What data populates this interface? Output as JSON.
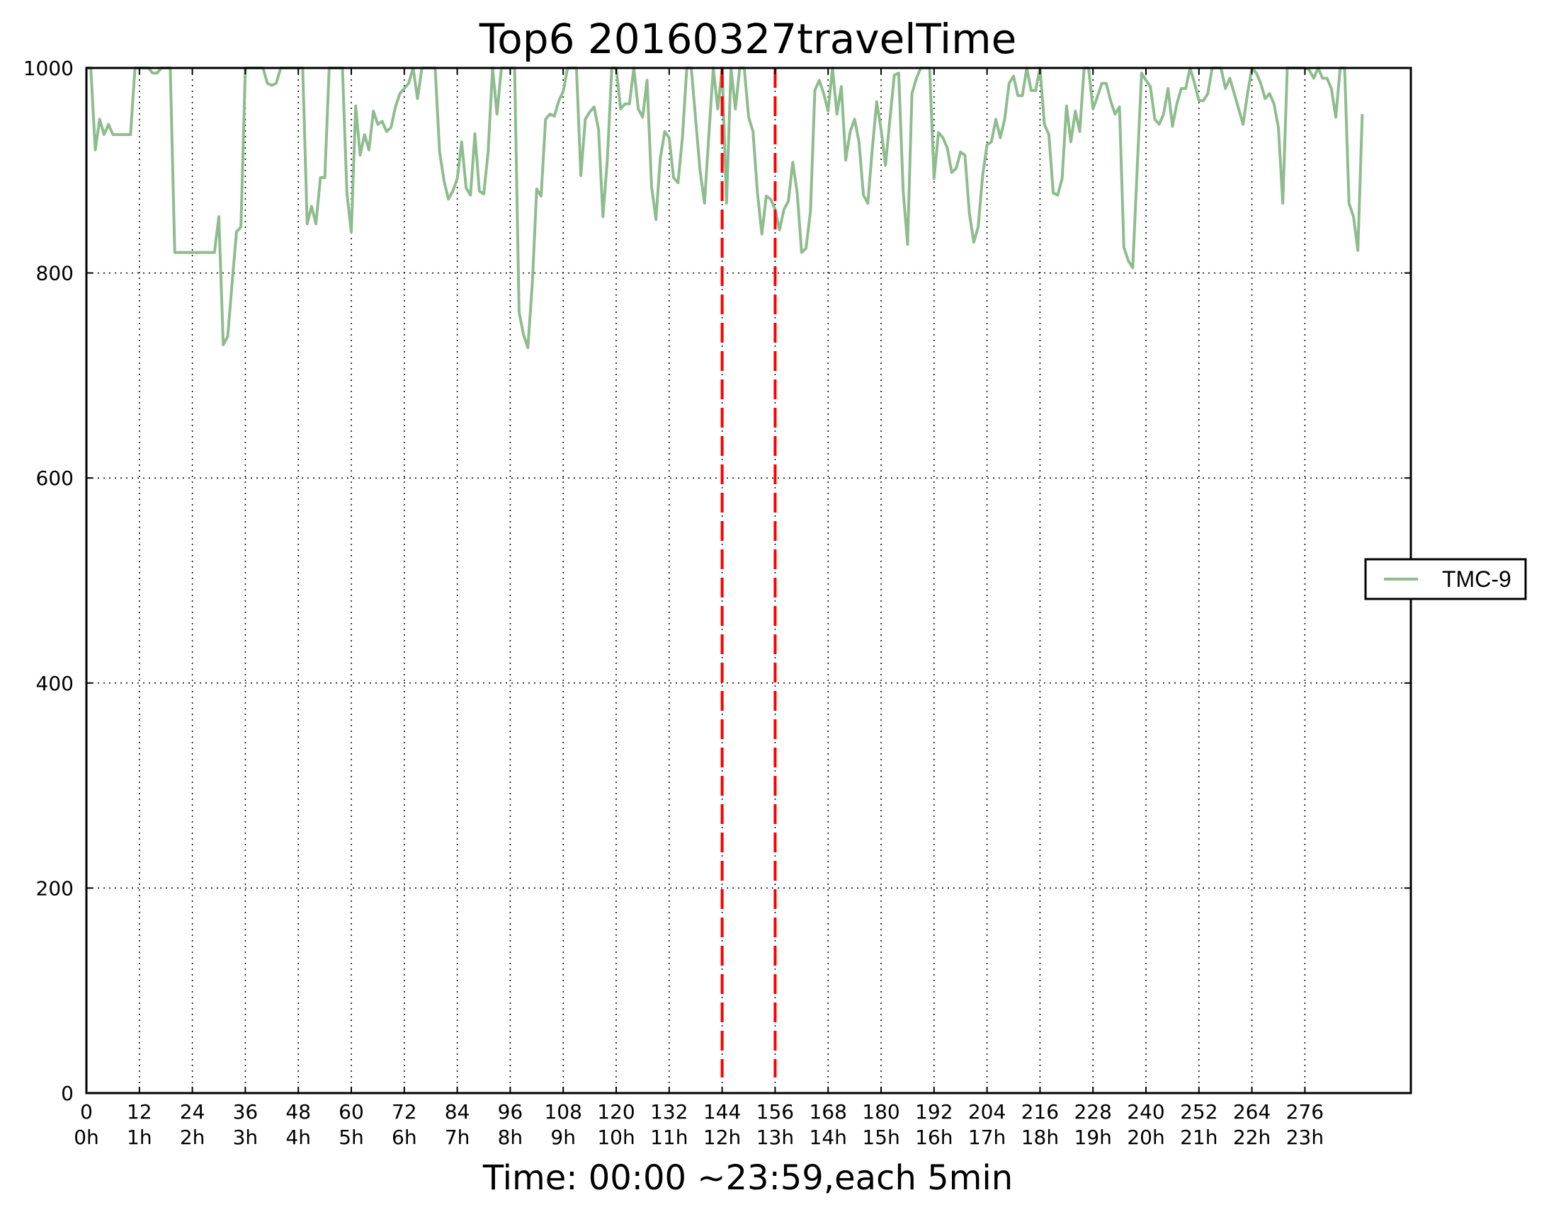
{
  "chart_data": {
    "type": "line",
    "title": "Top6 20160327travelTime",
    "xlabel": "Time: 00:00 ~23:59,each 5min",
    "ylabel": "",
    "xlim": [
      0,
      300
    ],
    "ylim": [
      0,
      1000
    ],
    "x_ticks": [
      {
        "value": 0,
        "label": "0",
        "sublabel": "0h"
      },
      {
        "value": 12,
        "label": "12",
        "sublabel": "1h"
      },
      {
        "value": 24,
        "label": "24",
        "sublabel": "2h"
      },
      {
        "value": 36,
        "label": "36",
        "sublabel": "3h"
      },
      {
        "value": 48,
        "label": "48",
        "sublabel": "4h"
      },
      {
        "value": 60,
        "label": "60",
        "sublabel": "5h"
      },
      {
        "value": 72,
        "label": "72",
        "sublabel": "6h"
      },
      {
        "value": 84,
        "label": "84",
        "sublabel": "7h"
      },
      {
        "value": 96,
        "label": "96",
        "sublabel": "8h"
      },
      {
        "value": 108,
        "label": "108",
        "sublabel": "9h"
      },
      {
        "value": 120,
        "label": "120",
        "sublabel": "10h"
      },
      {
        "value": 132,
        "label": "132",
        "sublabel": "11h"
      },
      {
        "value": 144,
        "label": "144",
        "sublabel": "12h"
      },
      {
        "value": 156,
        "label": "156",
        "sublabel": "13h"
      },
      {
        "value": 168,
        "label": "168",
        "sublabel": "14h"
      },
      {
        "value": 180,
        "label": "180",
        "sublabel": "15h"
      },
      {
        "value": 192,
        "label": "192",
        "sublabel": "16h"
      },
      {
        "value": 204,
        "label": "204",
        "sublabel": "17h"
      },
      {
        "value": 216,
        "label": "216",
        "sublabel": "18h"
      },
      {
        "value": 228,
        "label": "228",
        "sublabel": "19h"
      },
      {
        "value": 240,
        "label": "240",
        "sublabel": "20h"
      },
      {
        "value": 252,
        "label": "252",
        "sublabel": "21h"
      },
      {
        "value": 264,
        "label": "264",
        "sublabel": "22h"
      },
      {
        "value": 276,
        "label": "276",
        "sublabel": "23h"
      }
    ],
    "y_ticks": [
      {
        "value": 0,
        "label": "0"
      },
      {
        "value": 200,
        "label": "200"
      },
      {
        "value": 400,
        "label": "400"
      },
      {
        "value": 600,
        "label": "600"
      },
      {
        "value": 800,
        "label": "800"
      },
      {
        "value": 1000,
        "label": "1000"
      }
    ],
    "grid": true,
    "legend_position": "right",
    "series": [
      {
        "name": "TMC-9",
        "color": "#8fbc8f",
        "points": [
          [
            0,
            1000
          ],
          [
            1,
            1000
          ],
          [
            2,
            920
          ],
          [
            3,
            950
          ],
          [
            4,
            935
          ],
          [
            5,
            945
          ],
          [
            6,
            935
          ],
          [
            7,
            935
          ],
          [
            8,
            935
          ],
          [
            9,
            935
          ],
          [
            10,
            935
          ],
          [
            11,
            1000
          ],
          [
            12,
            1000
          ],
          [
            13,
            1000
          ],
          [
            14,
            1000
          ],
          [
            15,
            995
          ],
          [
            16,
            995
          ],
          [
            17,
            1000
          ],
          [
            18,
            1000
          ],
          [
            19,
            1000
          ],
          [
            20,
            820
          ],
          [
            21,
            820
          ],
          [
            22,
            820
          ],
          [
            23,
            820
          ],
          [
            24,
            820
          ],
          [
            25,
            820
          ],
          [
            26,
            820
          ],
          [
            27,
            820
          ],
          [
            28,
            820
          ],
          [
            29,
            820
          ],
          [
            30,
            855
          ],
          [
            31,
            730
          ],
          [
            32,
            738
          ],
          [
            33,
            790
          ],
          [
            34,
            840
          ],
          [
            35,
            845
          ],
          [
            36,
            1000
          ],
          [
            37,
            1000
          ],
          [
            38,
            1000
          ],
          [
            39,
            1000
          ],
          [
            40,
            1000
          ],
          [
            41,
            985
          ],
          [
            42,
            983
          ],
          [
            43,
            985
          ],
          [
            44,
            1000
          ],
          [
            45,
            1000
          ],
          [
            46,
            1000
          ],
          [
            47,
            1000
          ],
          [
            48,
            1000
          ],
          [
            49,
            1000
          ],
          [
            50,
            848
          ],
          [
            51,
            865
          ],
          [
            52,
            848
          ],
          [
            53,
            893
          ],
          [
            54,
            893
          ],
          [
            55,
            1000
          ],
          [
            56,
            1000
          ],
          [
            57,
            1000
          ],
          [
            58,
            1000
          ],
          [
            59,
            878
          ],
          [
            60,
            840
          ],
          [
            61,
            963
          ],
          [
            62,
            915
          ],
          [
            63,
            935
          ],
          [
            64,
            920
          ],
          [
            65,
            958
          ],
          [
            66,
            945
          ],
          [
            67,
            948
          ],
          [
            68,
            938
          ],
          [
            69,
            942
          ],
          [
            70,
            962
          ],
          [
            71,
            975
          ],
          [
            72,
            980
          ],
          [
            73,
            985
          ],
          [
            74,
            1000
          ],
          [
            75,
            970
          ],
          [
            76,
            1000
          ],
          [
            77,
            1000
          ],
          [
            78,
            1000
          ],
          [
            79,
            1000
          ],
          [
            80,
            918
          ],
          [
            81,
            890
          ],
          [
            82,
            872
          ],
          [
            83,
            880
          ],
          [
            84,
            892
          ],
          [
            85,
            928
          ],
          [
            86,
            883
          ],
          [
            87,
            876
          ],
          [
            88,
            936
          ],
          [
            89,
            880
          ],
          [
            90,
            877
          ],
          [
            91,
            918
          ],
          [
            92,
            1000
          ],
          [
            93,
            955
          ],
          [
            94,
            1000
          ],
          [
            95,
            1000
          ],
          [
            96,
            1000
          ],
          [
            97,
            1000
          ],
          [
            98,
            762
          ],
          [
            99,
            740
          ],
          [
            100,
            727
          ],
          [
            101,
            790
          ],
          [
            102,
            882
          ],
          [
            103,
            875
          ],
          [
            104,
            950
          ],
          [
            105,
            955
          ],
          [
            106,
            953
          ],
          [
            107,
            968
          ],
          [
            108,
            977
          ],
          [
            109,
            1000
          ],
          [
            110,
            1000
          ],
          [
            111,
            1000
          ],
          [
            112,
            895
          ],
          [
            113,
            950
          ],
          [
            114,
            957
          ],
          [
            115,
            962
          ],
          [
            116,
            940
          ],
          [
            117,
            855
          ],
          [
            118,
            910
          ],
          [
            119,
            1000
          ],
          [
            120,
            1000
          ],
          [
            121,
            960
          ],
          [
            122,
            965
          ],
          [
            123,
            965
          ],
          [
            124,
            1000
          ],
          [
            125,
            960
          ],
          [
            126,
            952
          ],
          [
            127,
            988
          ],
          [
            128,
            885
          ],
          [
            129,
            852
          ],
          [
            130,
            912
          ],
          [
            131,
            938
          ],
          [
            132,
            932
          ],
          [
            133,
            893
          ],
          [
            134,
            888
          ],
          [
            135,
            932
          ],
          [
            136,
            1000
          ],
          [
            137,
            1000
          ],
          [
            138,
            950
          ],
          [
            139,
            900
          ],
          [
            140,
            868
          ],
          [
            141,
            935
          ],
          [
            142,
            1000
          ],
          [
            143,
            960
          ],
          [
            144,
            1000
          ],
          [
            145,
            868
          ],
          [
            146,
            1000
          ],
          [
            147,
            960
          ],
          [
            148,
            1000
          ],
          [
            149,
            1000
          ],
          [
            150,
            952
          ],
          [
            151,
            938
          ],
          [
            152,
            878
          ],
          [
            153,
            838
          ],
          [
            154,
            875
          ],
          [
            155,
            872
          ],
          [
            156,
            862
          ],
          [
            157,
            842
          ],
          [
            158,
            862
          ],
          [
            159,
            870
          ],
          [
            160,
            908
          ],
          [
            161,
            878
          ],
          [
            162,
            820
          ],
          [
            163,
            824
          ],
          [
            164,
            860
          ],
          [
            165,
            978
          ],
          [
            166,
            988
          ],
          [
            167,
            975
          ],
          [
            168,
            958
          ],
          [
            169,
            1000
          ],
          [
            170,
            955
          ],
          [
            171,
            982
          ],
          [
            172,
            910
          ],
          [
            173,
            938
          ],
          [
            174,
            950
          ],
          [
            175,
            928
          ],
          [
            176,
            876
          ],
          [
            177,
            868
          ],
          [
            178,
            920
          ],
          [
            179,
            967
          ],
          [
            180,
            940
          ],
          [
            181,
            905
          ],
          [
            182,
            950
          ],
          [
            183,
            993
          ],
          [
            184,
            995
          ],
          [
            185,
            880
          ],
          [
            186,
            828
          ],
          [
            187,
            975
          ],
          [
            188,
            990
          ],
          [
            189,
            1000
          ],
          [
            190,
            1000
          ],
          [
            191,
            1000
          ],
          [
            192,
            892
          ],
          [
            193,
            937
          ],
          [
            194,
            932
          ],
          [
            195,
            922
          ],
          [
            196,
            898
          ],
          [
            197,
            902
          ],
          [
            198,
            918
          ],
          [
            199,
            915
          ],
          [
            200,
            858
          ],
          [
            201,
            830
          ],
          [
            202,
            845
          ],
          [
            203,
            895
          ],
          [
            204,
            925
          ],
          [
            205,
            928
          ],
          [
            206,
            950
          ],
          [
            207,
            932
          ],
          [
            208,
            950
          ],
          [
            209,
            985
          ],
          [
            210,
            992
          ],
          [
            211,
            973
          ],
          [
            212,
            973
          ],
          [
            213,
            1000
          ],
          [
            214,
            978
          ],
          [
            215,
            978
          ],
          [
            216,
            1000
          ],
          [
            217,
            945
          ],
          [
            218,
            935
          ],
          [
            219,
            878
          ],
          [
            220,
            876
          ],
          [
            221,
            892
          ],
          [
            222,
            963
          ],
          [
            223,
            928
          ],
          [
            224,
            958
          ],
          [
            225,
            938
          ],
          [
            226,
            1000
          ],
          [
            227,
            1000
          ],
          [
            228,
            960
          ],
          [
            229,
            972
          ],
          [
            230,
            985
          ],
          [
            231,
            985
          ],
          [
            232,
            968
          ],
          [
            233,
            955
          ],
          [
            234,
            962
          ],
          [
            235,
            825
          ],
          [
            236,
            812
          ],
          [
            237,
            805
          ],
          [
            238,
            900
          ],
          [
            239,
            995
          ],
          [
            240,
            988
          ],
          [
            241,
            982
          ],
          [
            242,
            950
          ],
          [
            243,
            945
          ],
          [
            244,
            955
          ],
          [
            245,
            980
          ],
          [
            246,
            943
          ],
          [
            247,
            965
          ],
          [
            248,
            980
          ],
          [
            249,
            980
          ],
          [
            250,
            1000
          ],
          [
            251,
            985
          ],
          [
            252,
            968
          ],
          [
            253,
            968
          ],
          [
            254,
            975
          ],
          [
            255,
            1000
          ],
          [
            256,
            1000
          ],
          [
            257,
            1000
          ],
          [
            258,
            980
          ],
          [
            259,
            990
          ],
          [
            260,
            975
          ],
          [
            261,
            960
          ],
          [
            262,
            945
          ],
          [
            263,
            975
          ],
          [
            264,
            1000
          ],
          [
            265,
            995
          ],
          [
            266,
            985
          ],
          [
            267,
            970
          ],
          [
            268,
            975
          ],
          [
            269,
            965
          ],
          [
            270,
            942
          ],
          [
            271,
            868
          ],
          [
            272,
            1000
          ],
          [
            273,
            1000
          ],
          [
            274,
            1000
          ],
          [
            275,
            1000
          ],
          [
            276,
            1000
          ],
          [
            277,
            998
          ],
          [
            278,
            990
          ],
          [
            279,
            1000
          ],
          [
            280,
            990
          ],
          [
            281,
            990
          ],
          [
            282,
            980
          ],
          [
            283,
            952
          ],
          [
            284,
            1000
          ],
          [
            285,
            1000
          ],
          [
            286,
            868
          ],
          [
            287,
            855
          ],
          [
            288,
            822
          ],
          [
            289,
            955
          ]
        ]
      }
    ],
    "vlines": [
      {
        "x": 144,
        "color": "#ff0000",
        "style": "dashed"
      },
      {
        "x": 156,
        "color": "#ff0000",
        "style": "dashed"
      }
    ]
  }
}
